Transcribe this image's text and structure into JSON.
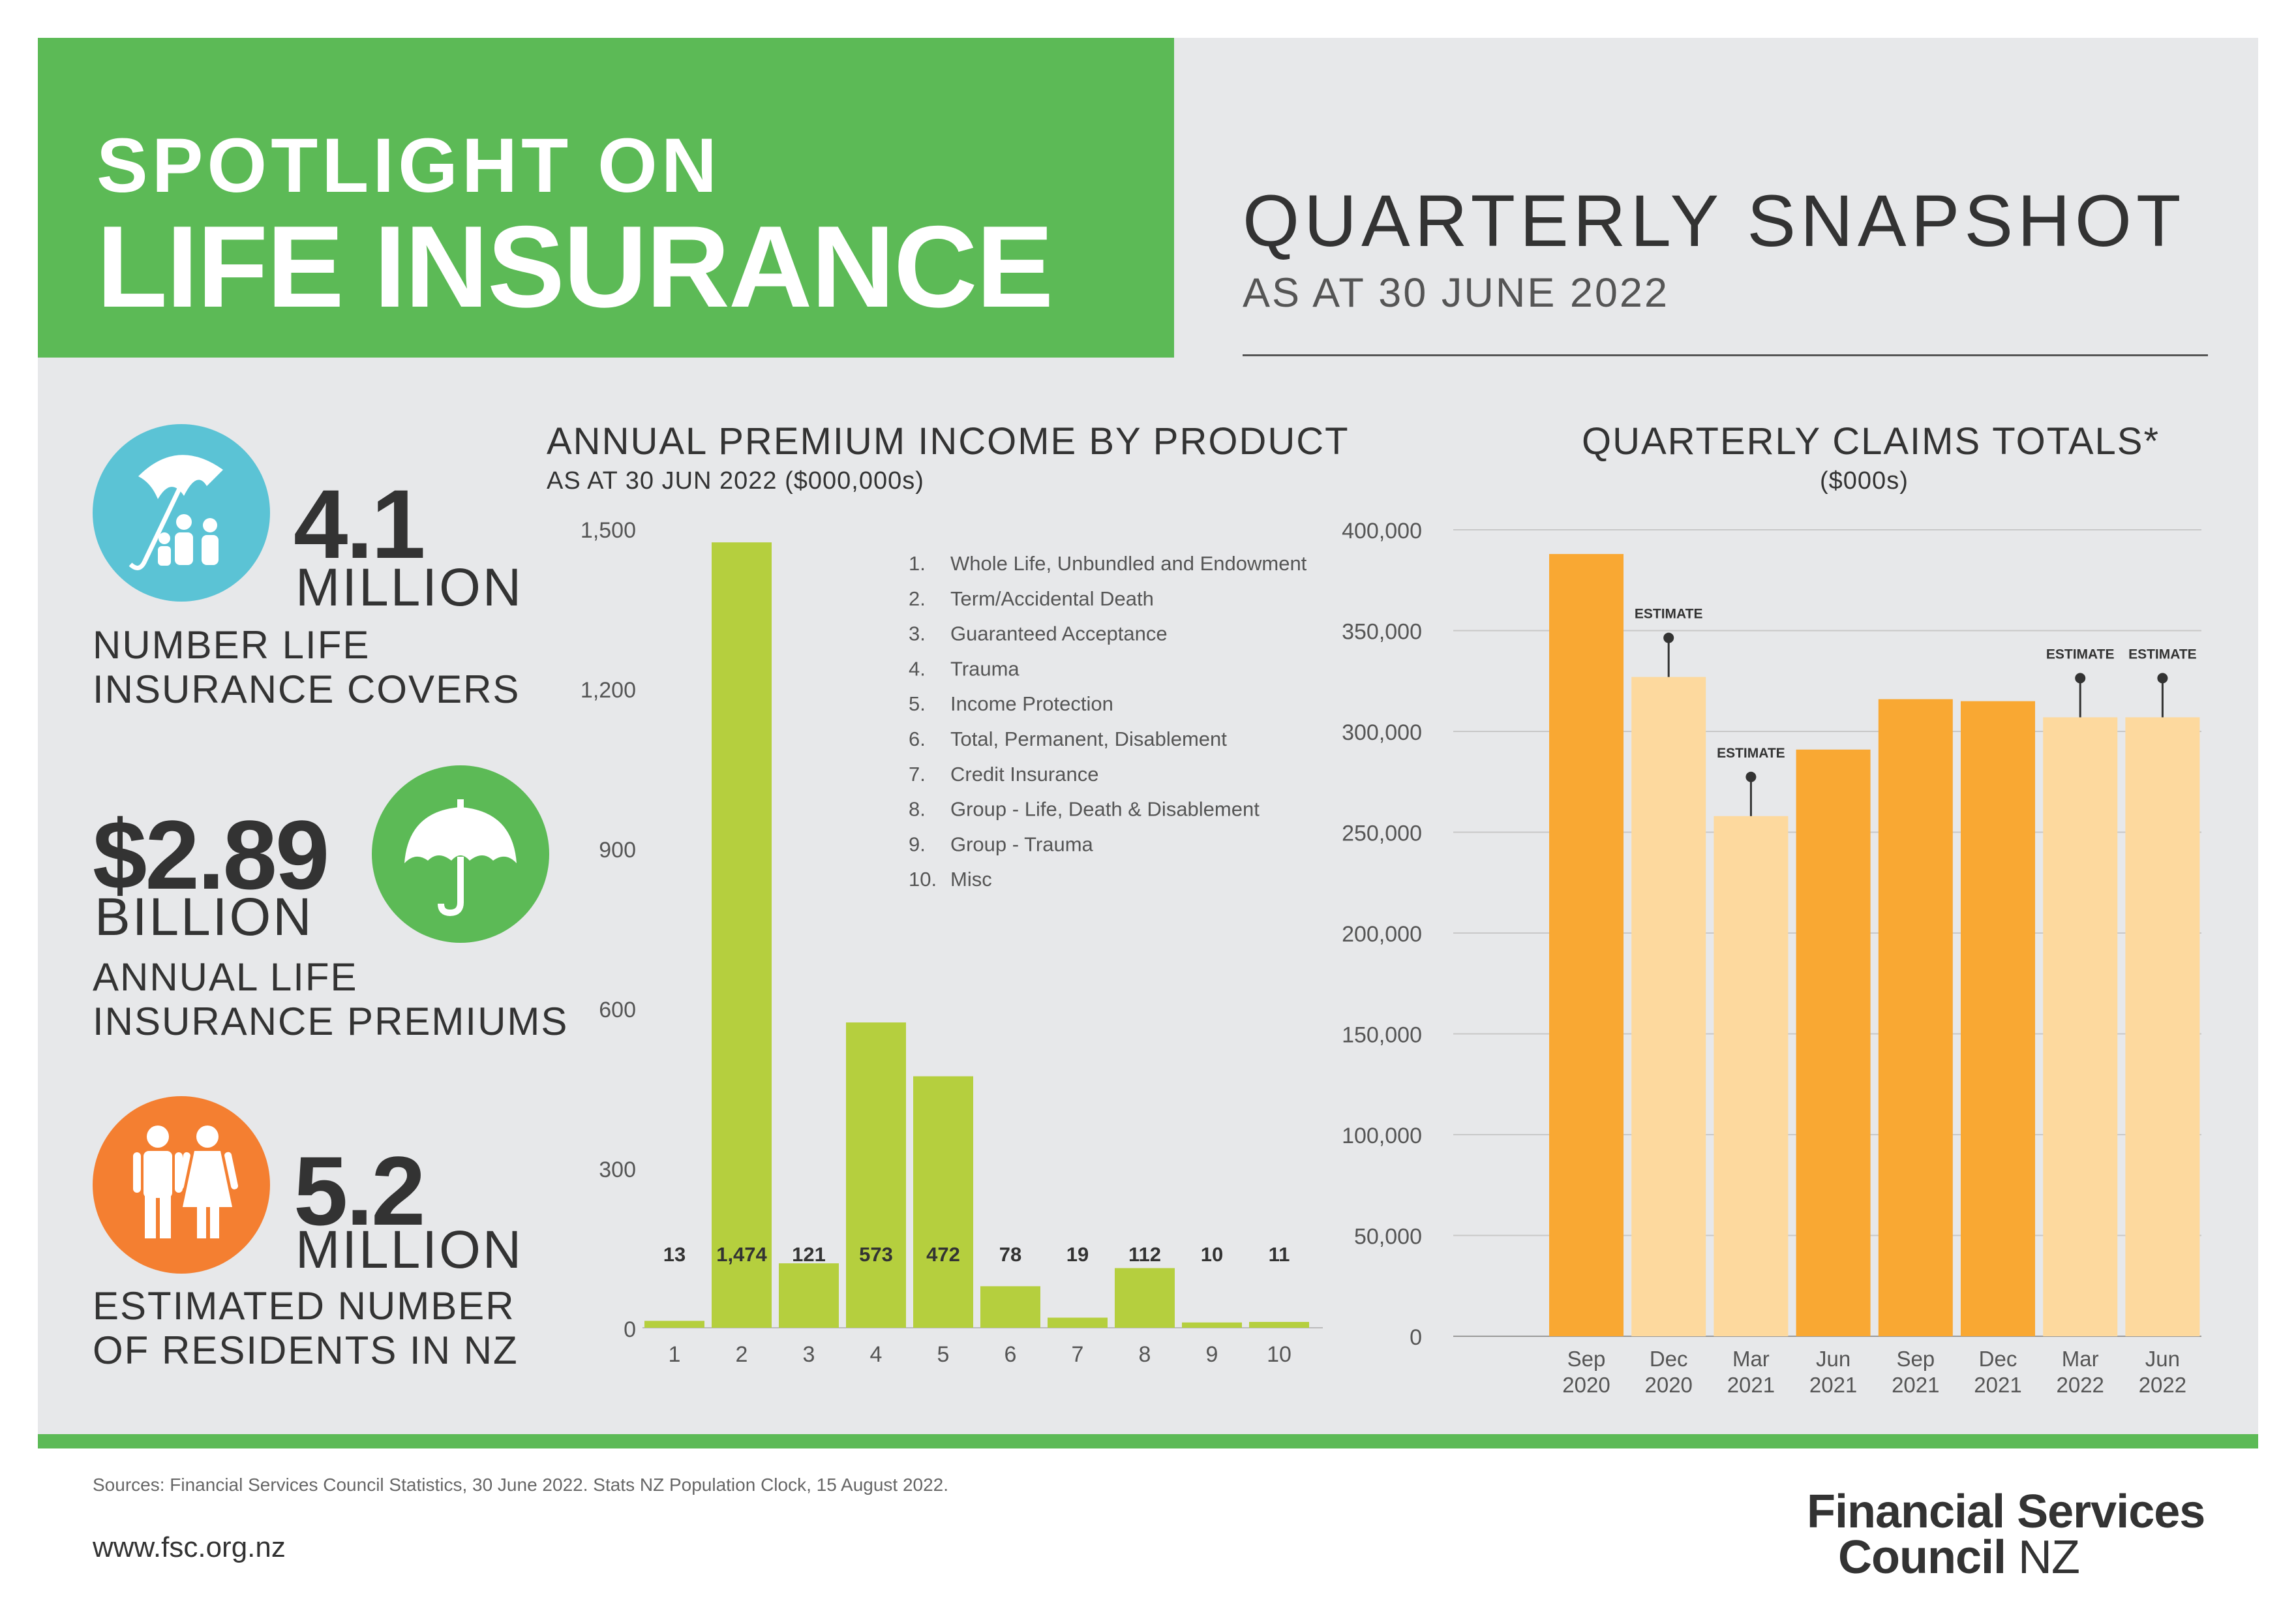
{
  "header": {
    "title_small": "SPOTLIGHT ON",
    "title_big": "LIFE INSURANCE",
    "snapshot_title": "QUARTERLY SNAPSHOT",
    "snapshot_date": "AS AT 30 JUNE 2022"
  },
  "stats": [
    {
      "value": "4.1",
      "unit": "MILLION",
      "desc_line1": "NUMBER LIFE",
      "desc_line2": "INSURANCE COVERS",
      "color": "#5bc3d5",
      "icon": "umbrella-family-icon"
    },
    {
      "value": "$2.89",
      "unit": "BILLION",
      "desc_line1": "ANNUAL LIFE",
      "desc_line2": "INSURANCE PREMIUMS",
      "color": "#5cba56",
      "icon": "umbrella-icon"
    },
    {
      "value": "5.2",
      "unit": "MILLION",
      "desc_line1": "ESTIMATED NUMBER",
      "desc_line2": "OF RESIDENTS IN NZ",
      "color": "#f47f31",
      "icon": "people-icon"
    }
  ],
  "chart_data": [
    {
      "type": "bar",
      "title": "ANNUAL PREMIUM INCOME BY PRODUCT",
      "subtitle": "AS AT 30 JUN 2022 ($000,000s)",
      "categories": [
        "1",
        "2",
        "3",
        "4",
        "5",
        "6",
        "7",
        "8",
        "9",
        "10"
      ],
      "values": [
        13,
        1474,
        121,
        573,
        472,
        78,
        19,
        112,
        10,
        11
      ],
      "value_labels": [
        "13",
        "1,474",
        "121",
        "573",
        "472",
        "78",
        "19",
        "112",
        "10",
        "11"
      ],
      "ylim": [
        0,
        1500
      ],
      "yticks": [
        0,
        300,
        600,
        900,
        1200,
        1500
      ],
      "ytick_labels": [
        "0",
        "300",
        "600",
        "900",
        "1,200",
        "1,500"
      ],
      "bar_color": "#b5cf3e",
      "legend": [
        {
          "num": "1.",
          "label": "Whole Life, Unbundled and Endowment"
        },
        {
          "num": "2.",
          "label": "Term/Accidental Death"
        },
        {
          "num": "3.",
          "label": "Guaranteed Acceptance"
        },
        {
          "num": "4.",
          "label": "Trauma"
        },
        {
          "num": "5.",
          "label": "Income Protection"
        },
        {
          "num": "6.",
          "label": "Total, Permanent, Disablement"
        },
        {
          "num": "7.",
          "label": "Credit Insurance"
        },
        {
          "num": "8.",
          "label": "Group - Life, Death & Disablement"
        },
        {
          "num": "9.",
          "label": "Group - Trauma"
        },
        {
          "num": "10.",
          "label": "Misc"
        }
      ],
      "grid": false
    },
    {
      "type": "bar",
      "title": "QUARTERLY CLAIMS TOTALS*",
      "subtitle": "($000s)",
      "categories": [
        [
          "Sep",
          "2020"
        ],
        [
          "Dec",
          "2020"
        ],
        [
          "Mar",
          "2021"
        ],
        [
          "Jun",
          "2021"
        ],
        [
          "Sep",
          "2021"
        ],
        [
          "Dec",
          "2021"
        ],
        [
          "Mar",
          "2022"
        ],
        [
          "Jun",
          "2022"
        ]
      ],
      "values": [
        388000,
        327000,
        258000,
        291000,
        316000,
        315000,
        307000,
        307000
      ],
      "estimate": [
        false,
        true,
        true,
        false,
        false,
        false,
        true,
        true
      ],
      "estimate_label": "ESTIMATE",
      "ylim": [
        0,
        400000
      ],
      "yticks": [
        0,
        50000,
        100000,
        150000,
        200000,
        250000,
        300000,
        350000,
        400000
      ],
      "ytick_labels": [
        "0",
        "50,000",
        "100,000",
        "150,000",
        "200,000",
        "250,000",
        "300,000",
        "350,000",
        "400,000"
      ],
      "colors": {
        "actual": "#f9a833",
        "estimate": "#fdd99e"
      },
      "grid": true
    }
  ],
  "footer": {
    "sources": "Sources: Financial Services Council Statistics, 30 June 2022. Stats NZ Population Clock, 15 August 2022.",
    "url": "www.fsc.org.nz",
    "logo_line1": "Financial Services",
    "logo_line2a": "Council",
    "logo_line2b": "NZ"
  }
}
